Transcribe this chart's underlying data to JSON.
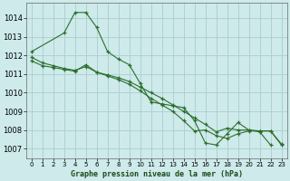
{
  "background_color": "#ceeaea",
  "grid_color": "#aacece",
  "line_color": "#2d6e2d",
  "title": "Graphe pression niveau de la mer (hPa)",
  "xlim": [
    -0.5,
    23.5
  ],
  "ylim": [
    1006.5,
    1014.8
  ],
  "yticks": [
    1007,
    1008,
    1009,
    1010,
    1011,
    1012,
    1013,
    1014
  ],
  "xticks": [
    0,
    1,
    2,
    3,
    4,
    5,
    6,
    7,
    8,
    9,
    10,
    11,
    12,
    13,
    14,
    15,
    16,
    17,
    18,
    19,
    20,
    21,
    22,
    23
  ],
  "series1_x": [
    0,
    3,
    4,
    5,
    6,
    7,
    8,
    9,
    10,
    11,
    12,
    13,
    14,
    15,
    16,
    17,
    18,
    19,
    20,
    21,
    22
  ],
  "series1_y": [
    1012.2,
    1013.2,
    1014.3,
    1014.3,
    1013.5,
    1012.2,
    1011.8,
    1011.5,
    1010.5,
    1009.5,
    1009.4,
    1009.3,
    1009.2,
    1008.5,
    1007.3,
    1007.2,
    1007.8,
    1008.4,
    1008.0,
    1007.9,
    1007.2
  ],
  "series2_x": [
    0,
    1,
    2,
    3,
    4,
    5,
    6,
    7,
    8,
    9,
    10,
    11,
    12,
    13,
    14,
    15,
    16,
    17,
    18,
    19,
    20,
    21,
    22,
    23
  ],
  "series2_y": [
    1011.7,
    1011.45,
    1011.35,
    1011.25,
    1011.15,
    1011.5,
    1011.1,
    1010.95,
    1010.8,
    1010.6,
    1010.3,
    1010.0,
    1009.7,
    1009.35,
    1009.0,
    1008.65,
    1008.3,
    1007.9,
    1008.1,
    1008.0,
    1008.0,
    1007.95,
    1007.95,
    1007.2
  ],
  "series3_x": [
    0,
    1,
    2,
    3,
    4,
    5,
    6,
    7,
    8,
    9,
    10,
    11,
    12,
    13,
    14,
    15,
    16,
    17,
    18,
    19,
    20,
    21,
    22,
    23
  ],
  "series3_y": [
    1011.9,
    1011.6,
    1011.45,
    1011.3,
    1011.2,
    1011.4,
    1011.1,
    1010.9,
    1010.7,
    1010.45,
    1010.1,
    1009.7,
    1009.35,
    1009.0,
    1008.5,
    1007.95,
    1008.0,
    1007.7,
    1007.55,
    1007.8,
    1007.95,
    1007.95,
    1007.95,
    1007.25
  ]
}
